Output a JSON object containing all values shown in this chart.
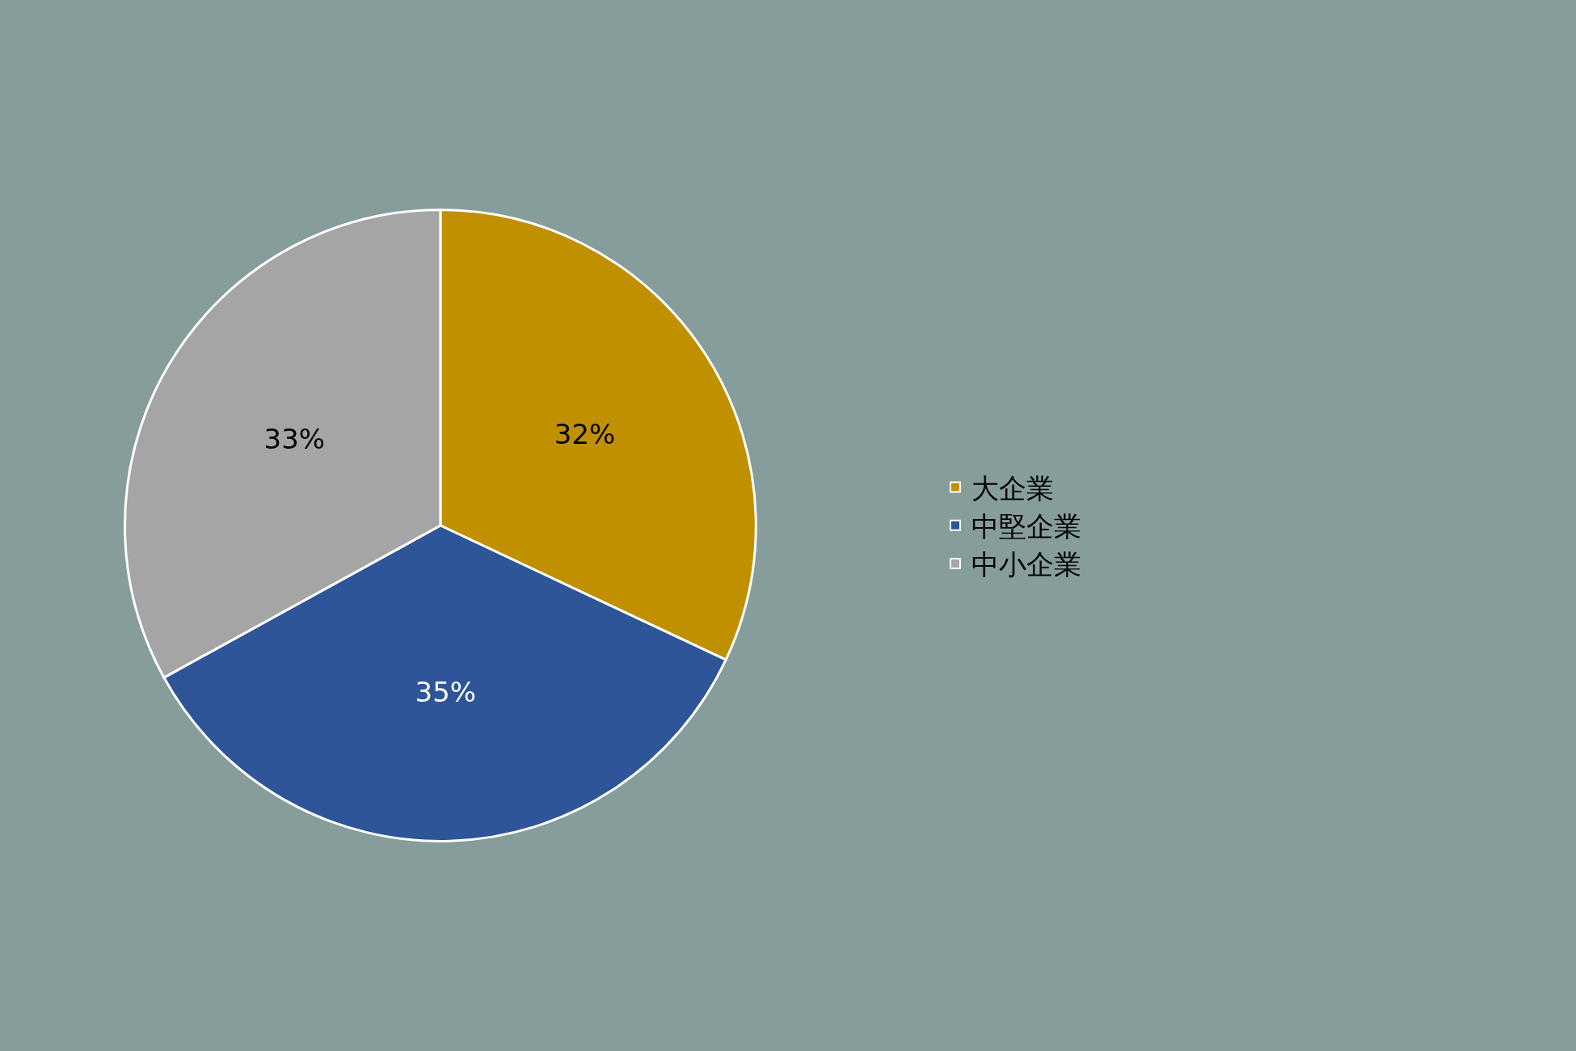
{
  "chart_data": {
    "type": "pie",
    "categories": [
      "大企業",
      "中堅企業",
      "中小企業"
    ],
    "values": [
      32,
      35,
      33
    ],
    "colors": [
      "#c09000",
      "#2e5597",
      "#a5a5a5"
    ],
    "value_labels": [
      "32%",
      "35%",
      "33%"
    ],
    "legend": "right"
  }
}
